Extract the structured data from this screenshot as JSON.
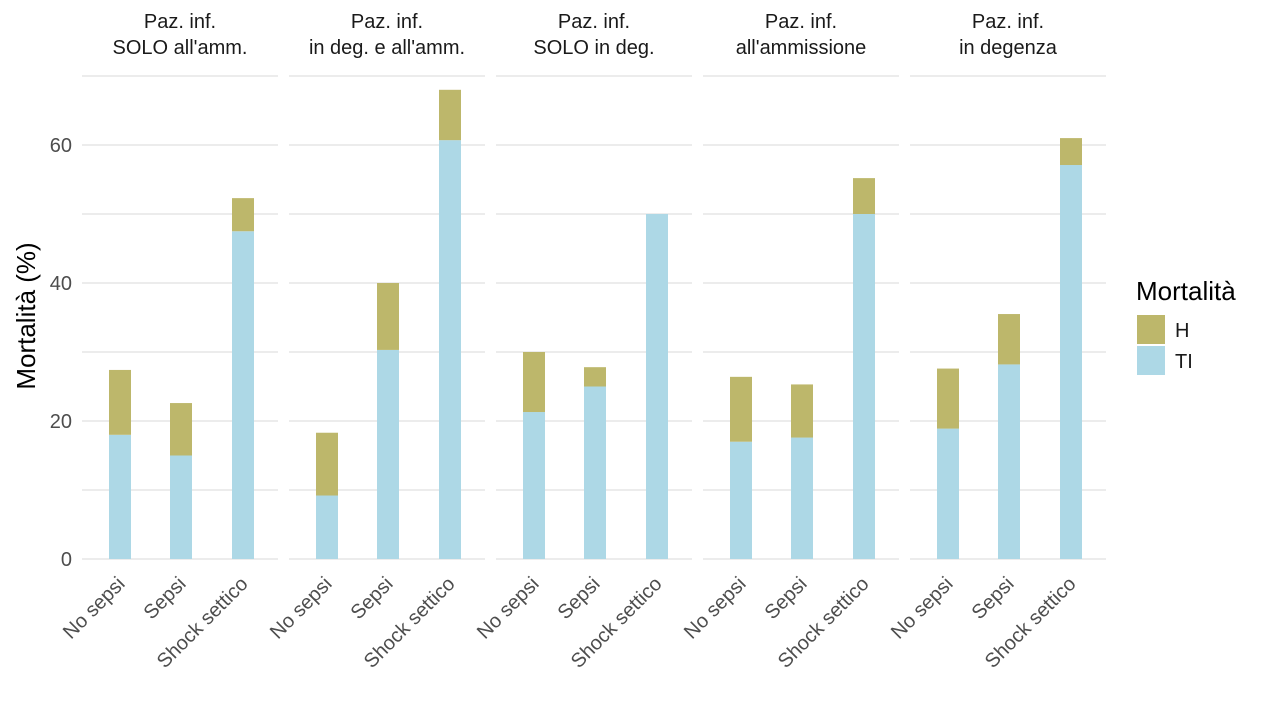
{
  "chart_data": {
    "type": "bar",
    "stacked": true,
    "ylabel": "Mortalità (%)",
    "xlabel": "",
    "ylim": [
      0,
      70
    ],
    "y_ticks": [
      0,
      20,
      40,
      60
    ],
    "grid": true,
    "legend": {
      "title": "Mortalità",
      "position": "right",
      "entries": [
        {
          "key": "H",
          "label": "H",
          "color": "#bdb76b"
        },
        {
          "key": "TI",
          "label": "TI",
          "color": "#add8e6"
        }
      ]
    },
    "categories": [
      "No sepsi",
      "Sepsi",
      "Shock settico"
    ],
    "panels": [
      {
        "title": [
          "Paz. inf.",
          "SOLO all'amm."
        ],
        "TI": [
          18.0,
          15.0,
          47.5
        ],
        "H": [
          9.4,
          7.6,
          4.8
        ]
      },
      {
        "title": [
          "Paz. inf.",
          "in deg. e all'amm."
        ],
        "TI": [
          9.2,
          30.3,
          60.7
        ],
        "H": [
          9.1,
          9.7,
          7.3
        ]
      },
      {
        "title": [
          "Paz. inf.",
          "SOLO in deg."
        ],
        "TI": [
          21.3,
          25.0,
          50.0
        ],
        "H": [
          8.7,
          2.8,
          0.0
        ]
      },
      {
        "title": [
          "Paz. inf.",
          "all'ammissione"
        ],
        "TI": [
          17.0,
          17.6,
          50.0
        ],
        "H": [
          9.4,
          7.7,
          5.2
        ]
      },
      {
        "title": [
          "Paz. inf.",
          "in degenza"
        ],
        "TI": [
          18.9,
          28.2,
          57.1
        ],
        "H": [
          8.7,
          7.3,
          3.9
        ]
      }
    ]
  }
}
